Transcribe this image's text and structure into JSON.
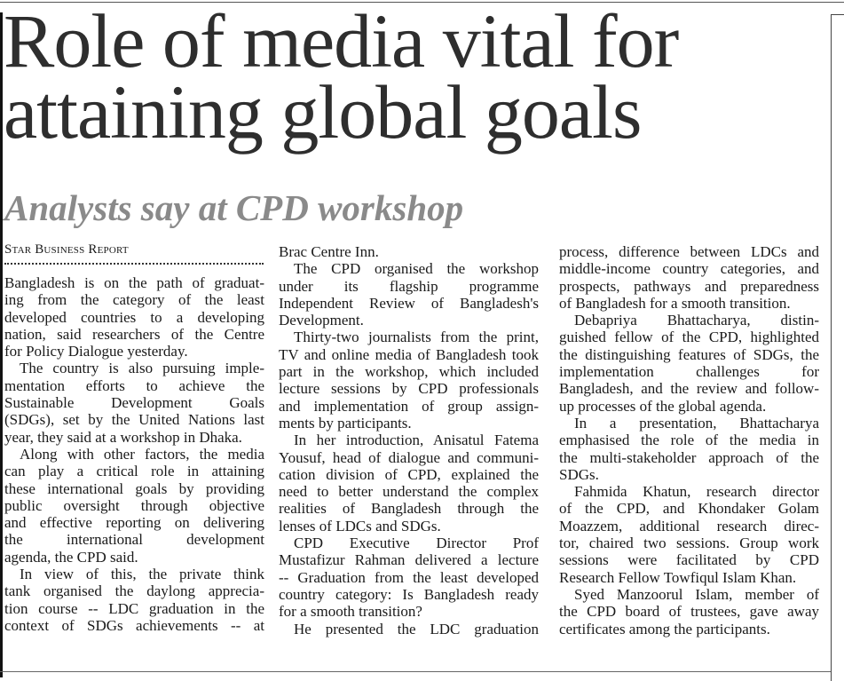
{
  "headline": {
    "line1": "Role of media vital for",
    "line2": "attaining global goals"
  },
  "subheadline": "Analysts say at CPD workshop",
  "byline": "Star Business Report",
  "columns": [
    {
      "paragraphs": [
        {
          "indent": false,
          "continues": false,
          "lines": [
            "Bangladesh is on the path of graduat-",
            "ing from the category of the least",
            "developed countries to a developing",
            "nation, said researchers of the Centre",
            "for Policy Dialogue yesterday."
          ]
        },
        {
          "indent": true,
          "continues": false,
          "lines": [
            "The country is also pursuing imple-",
            "mentation efforts to achieve the",
            "Sustainable Development Goals",
            "(SDGs), set by the United Nations last",
            "year, they said at a workshop in Dhaka."
          ]
        },
        {
          "indent": true,
          "continues": false,
          "lines": [
            "Along with other factors, the media",
            "can play a critical role in attaining",
            "these international goals by providing",
            "public oversight through objective",
            "and effective reporting on delivering",
            "the international development",
            "agenda, the CPD said."
          ]
        },
        {
          "indent": true,
          "continues": true,
          "lines": [
            "In view of this, the private think",
            "tank organised the daylong apprecia-",
            "tion course -- LDC graduation in the",
            "context of SDGs achievements -- at"
          ]
        }
      ]
    },
    {
      "paragraphs": [
        {
          "indent": false,
          "continues": false,
          "lines": [
            "Brac Centre Inn."
          ]
        },
        {
          "indent": true,
          "continues": false,
          "lines": [
            "The CPD organised the workshop",
            "under its flagship programme",
            "Independent Review of Bangladesh's",
            "Development."
          ]
        },
        {
          "indent": true,
          "continues": false,
          "lines": [
            "Thirty-two journalists from the print,",
            "TV and online media of Bangladesh took",
            "part in the workshop, which included",
            "lecture sessions by CPD professionals",
            "and implementation of group assign-",
            "ments by participants."
          ]
        },
        {
          "indent": true,
          "continues": false,
          "lines": [
            "In her introduction, Anisatul Fatema",
            "Yousuf, head of dialogue and communi-",
            "cation division of CPD, explained the",
            "need to better understand the complex",
            "realities of Bangladesh through the",
            "lenses of LDCs and SDGs."
          ]
        },
        {
          "indent": true,
          "continues": false,
          "lines": [
            "CPD Executive Director Prof",
            "Mustafizur Rahman delivered a lecture",
            "-- Graduation from the least developed",
            "country category: Is Bangladesh ready",
            "for a smooth transition?"
          ]
        },
        {
          "indent": true,
          "continues": true,
          "lines": [
            "He presented the LDC graduation"
          ]
        }
      ]
    },
    {
      "paragraphs": [
        {
          "indent": false,
          "continues": false,
          "lines": [
            "process, difference between LDCs and",
            "middle-income country categories, and",
            "prospects, pathways and preparedness",
            "of Bangladesh for a smooth transition."
          ]
        },
        {
          "indent": true,
          "continues": false,
          "lines": [
            "Debapriya Bhattacharya, distin-",
            "guished fellow of the CPD, highlighted",
            "the distinguishing features of SDGs, the",
            "implementation challenges for",
            "Bangladesh, and the review and follow-",
            "up processes of the global agenda."
          ]
        },
        {
          "indent": true,
          "continues": false,
          "lines": [
            "In a presentation, Bhattacharya",
            "emphasised the role of the media in",
            "the multi-stakeholder approach of the",
            "SDGs."
          ]
        },
        {
          "indent": true,
          "continues": false,
          "lines": [
            "Fahmida Khatun, research director",
            "of the CPD, and Khondaker Golam",
            "Moazzem, additional research direc-",
            "tor, chaired two sessions. Group work",
            "sessions were facilitated by CPD",
            "Research Fellow Towfiqul Islam Khan."
          ]
        },
        {
          "indent": true,
          "continues": false,
          "lines": [
            "Syed Manzoorul Islam, member of",
            "the CPD board of trustees, gave away",
            "certificates among the participants."
          ]
        }
      ]
    }
  ]
}
